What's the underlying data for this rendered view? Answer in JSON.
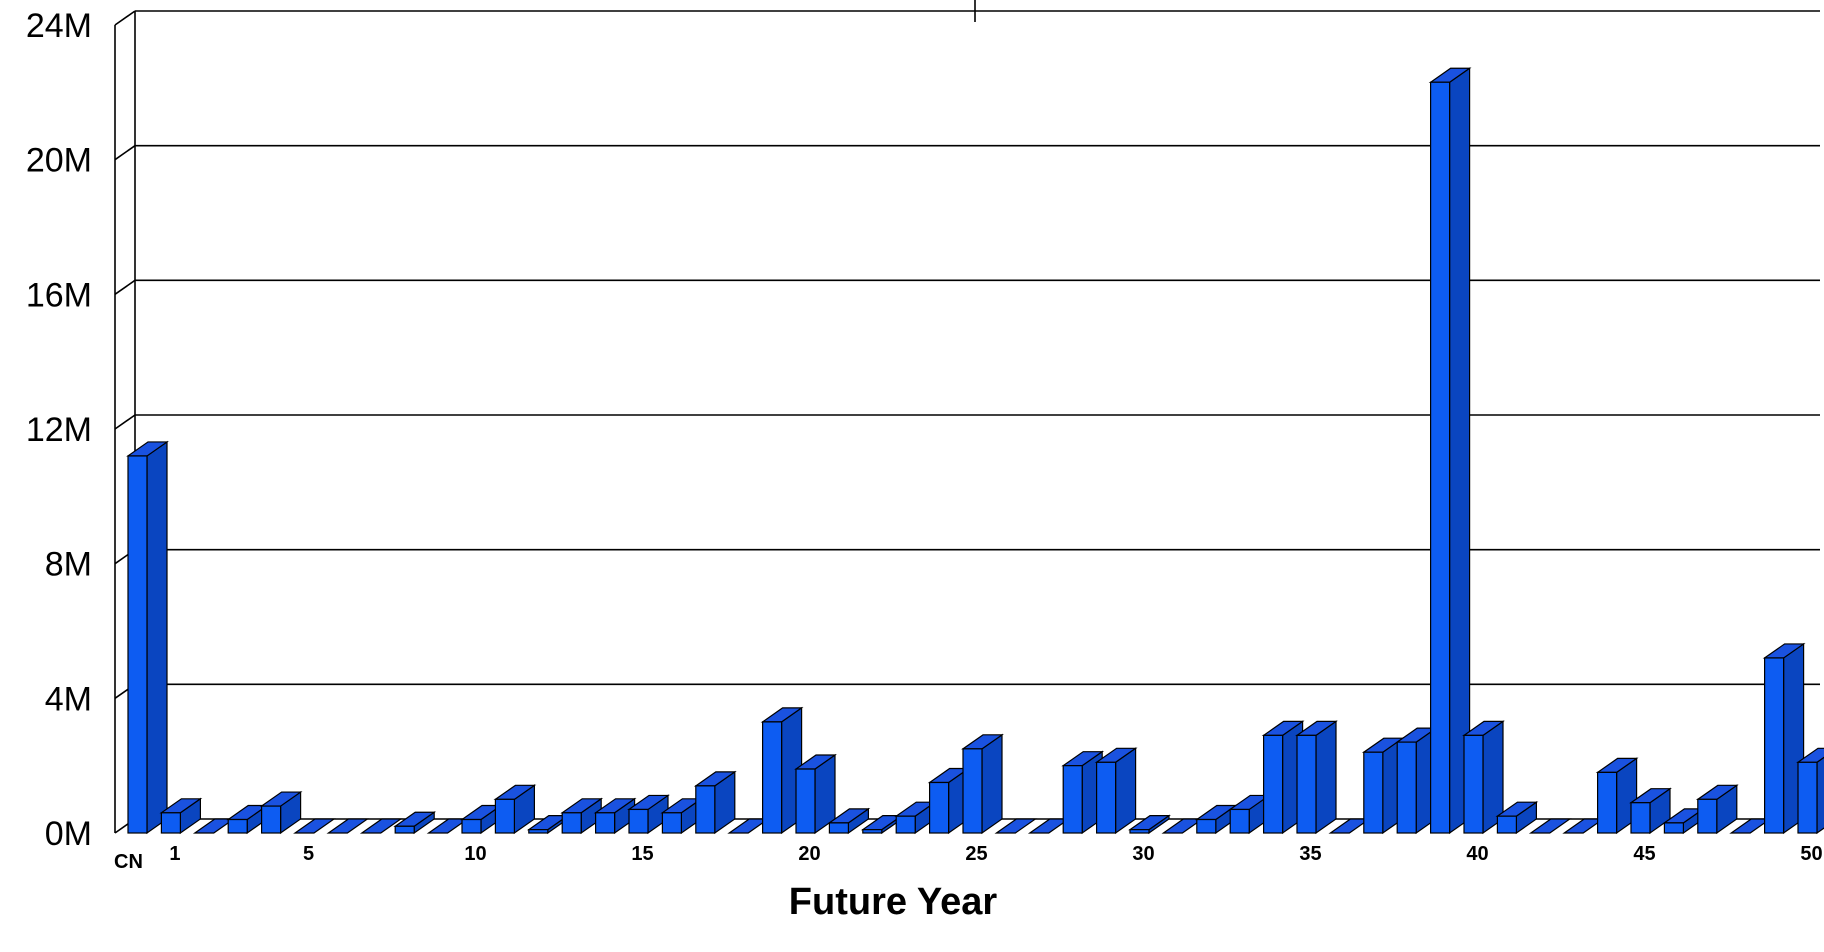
{
  "chart_data": {
    "type": "bar",
    "title": "",
    "xlabel": "Future Year",
    "ylabel": "",
    "ylim": [
      0,
      24000000
    ],
    "y_ticks": [
      0,
      4000000,
      8000000,
      12000000,
      16000000,
      20000000,
      24000000
    ],
    "y_tick_labels": [
      "0M",
      "4M",
      "8M",
      "12M",
      "16M",
      "20M",
      "24M"
    ],
    "x_tick_labels": [
      "CN",
      "1",
      "5",
      "10",
      "15",
      "20",
      "25",
      "30",
      "35",
      "40",
      "45",
      "50"
    ],
    "categories": [
      "CN",
      "1",
      "2",
      "3",
      "4",
      "5",
      "6",
      "7",
      "8",
      "9",
      "10",
      "11",
      "12",
      "13",
      "14",
      "15",
      "16",
      "17",
      "18",
      "19",
      "20",
      "21",
      "22",
      "23",
      "24",
      "25",
      "26",
      "27",
      "28",
      "29",
      "30",
      "31",
      "32",
      "33",
      "34",
      "35",
      "36",
      "37",
      "38",
      "39",
      "40",
      "41",
      "42",
      "43",
      "44",
      "45",
      "46",
      "47",
      "48",
      "49",
      "50"
    ],
    "values": [
      11200000,
      600000,
      0,
      400000,
      800000,
      0,
      0,
      0,
      200000,
      0,
      400000,
      1000000,
      100000,
      600000,
      600000,
      700000,
      600000,
      1400000,
      0,
      3300000,
      1900000,
      300000,
      100000,
      500000,
      1500000,
      2500000,
      0,
      0,
      2000000,
      2100000,
      100000,
      0,
      400000,
      700000,
      2900000,
      2900000,
      0,
      2400000,
      2700000,
      22300000,
      2900000,
      500000,
      0,
      0,
      1800000,
      900000,
      300000,
      1000000,
      0,
      5200000,
      2100000
    ],
    "grid": true,
    "legend": "none",
    "colors": {
      "bar_front": "#0d5cf2",
      "bar_side": "#0a45c0",
      "bar_top": "#1a52e0",
      "gridline": "#000000"
    }
  }
}
